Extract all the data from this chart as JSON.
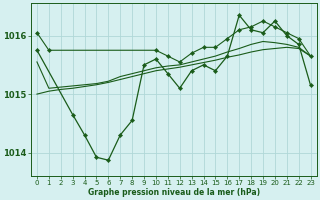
{
  "title": "Graphe pression niveau de la mer (hPa)",
  "bg_color": "#d6f0f0",
  "grid_color": "#b0d8d8",
  "line_color": "#1a5c1a",
  "xlim": [
    -0.5,
    23.5
  ],
  "ylim": [
    1013.6,
    1016.55
  ],
  "yticks": [
    1014,
    1015,
    1016
  ],
  "xticks": [
    0,
    1,
    2,
    3,
    4,
    5,
    6,
    7,
    8,
    9,
    10,
    11,
    12,
    13,
    14,
    15,
    16,
    17,
    18,
    19,
    20,
    21,
    22,
    23
  ],
  "series_dip_x": [
    0,
    3,
    4,
    5,
    6,
    7,
    8,
    9,
    10,
    11,
    12,
    13,
    14,
    15,
    16,
    17,
    18,
    19,
    20,
    21,
    22,
    23
  ],
  "series_dip_y": [
    1015.75,
    1014.65,
    1014.3,
    1013.92,
    1013.87,
    1014.3,
    1014.55,
    1015.5,
    1015.6,
    1015.35,
    1015.1,
    1015.4,
    1015.5,
    1015.4,
    1015.65,
    1016.35,
    1016.1,
    1016.05,
    1016.25,
    1016.0,
    1015.85,
    1015.15
  ],
  "series_top_x": [
    0,
    1,
    10,
    11,
    12,
    13,
    14,
    15,
    16,
    17,
    18,
    19,
    20,
    21,
    22,
    23
  ],
  "series_top_y": [
    1016.05,
    1015.75,
    1015.75,
    1015.65,
    1015.55,
    1015.7,
    1015.8,
    1015.8,
    1015.95,
    1016.1,
    1016.15,
    1016.25,
    1016.15,
    1016.05,
    1015.95,
    1015.65
  ],
  "series_mid1_x": [
    0,
    1,
    2,
    3,
    4,
    5,
    6,
    7,
    8,
    9,
    10,
    11,
    12,
    13,
    14,
    15,
    16,
    17,
    18,
    19,
    20,
    21,
    22,
    23
  ],
  "series_mid1_y": [
    1015.55,
    1015.1,
    1015.12,
    1015.14,
    1015.16,
    1015.18,
    1015.22,
    1015.3,
    1015.35,
    1015.4,
    1015.45,
    1015.48,
    1015.5,
    1015.55,
    1015.6,
    1015.65,
    1015.72,
    1015.78,
    1015.85,
    1015.9,
    1015.88,
    1015.85,
    1015.8,
    1015.65
  ],
  "series_base_x": [
    0,
    1,
    2,
    3,
    4,
    5,
    6,
    7,
    8,
    9,
    10,
    11,
    12,
    13,
    14,
    15,
    16,
    17,
    18,
    19,
    20,
    21,
    22,
    23
  ],
  "series_base_y": [
    1015.0,
    1015.05,
    1015.08,
    1015.1,
    1015.13,
    1015.16,
    1015.2,
    1015.25,
    1015.3,
    1015.35,
    1015.4,
    1015.43,
    1015.46,
    1015.5,
    1015.54,
    1015.58,
    1015.63,
    1015.67,
    1015.72,
    1015.76,
    1015.78,
    1015.8,
    1015.78,
    1015.65
  ]
}
